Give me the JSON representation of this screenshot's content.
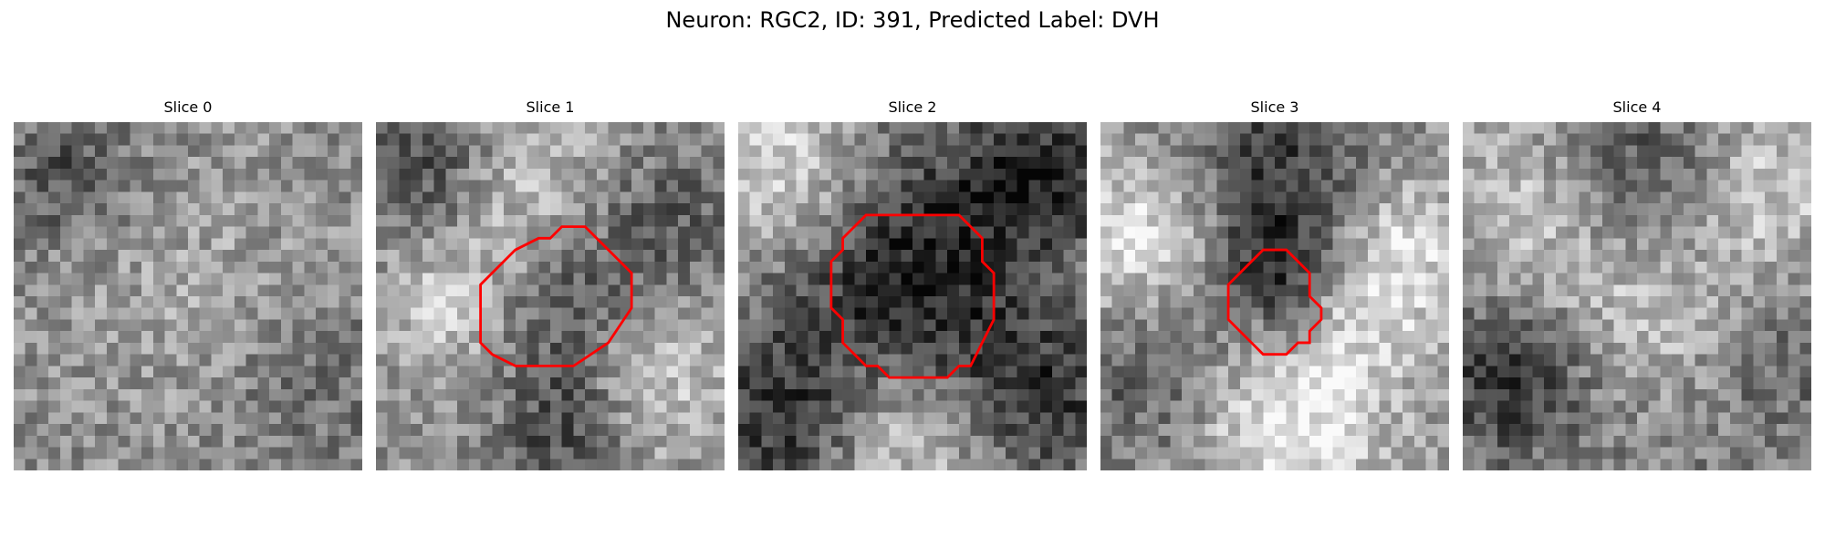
{
  "figure": {
    "title": "Neuron: RGC2, ID: 391, Predicted Label: DVH"
  },
  "panels": [
    {
      "title": "Slice 0",
      "has_contour": false
    },
    {
      "title": "Slice 1",
      "has_contour": true
    },
    {
      "title": "Slice 2",
      "has_contour": true
    },
    {
      "title": "Slice 3",
      "has_contour": true
    },
    {
      "title": "Slice 4",
      "has_contour": false
    }
  ],
  "colors": {
    "contour": "#ff0000",
    "background": "#ffffff"
  },
  "colormap": "gray"
}
